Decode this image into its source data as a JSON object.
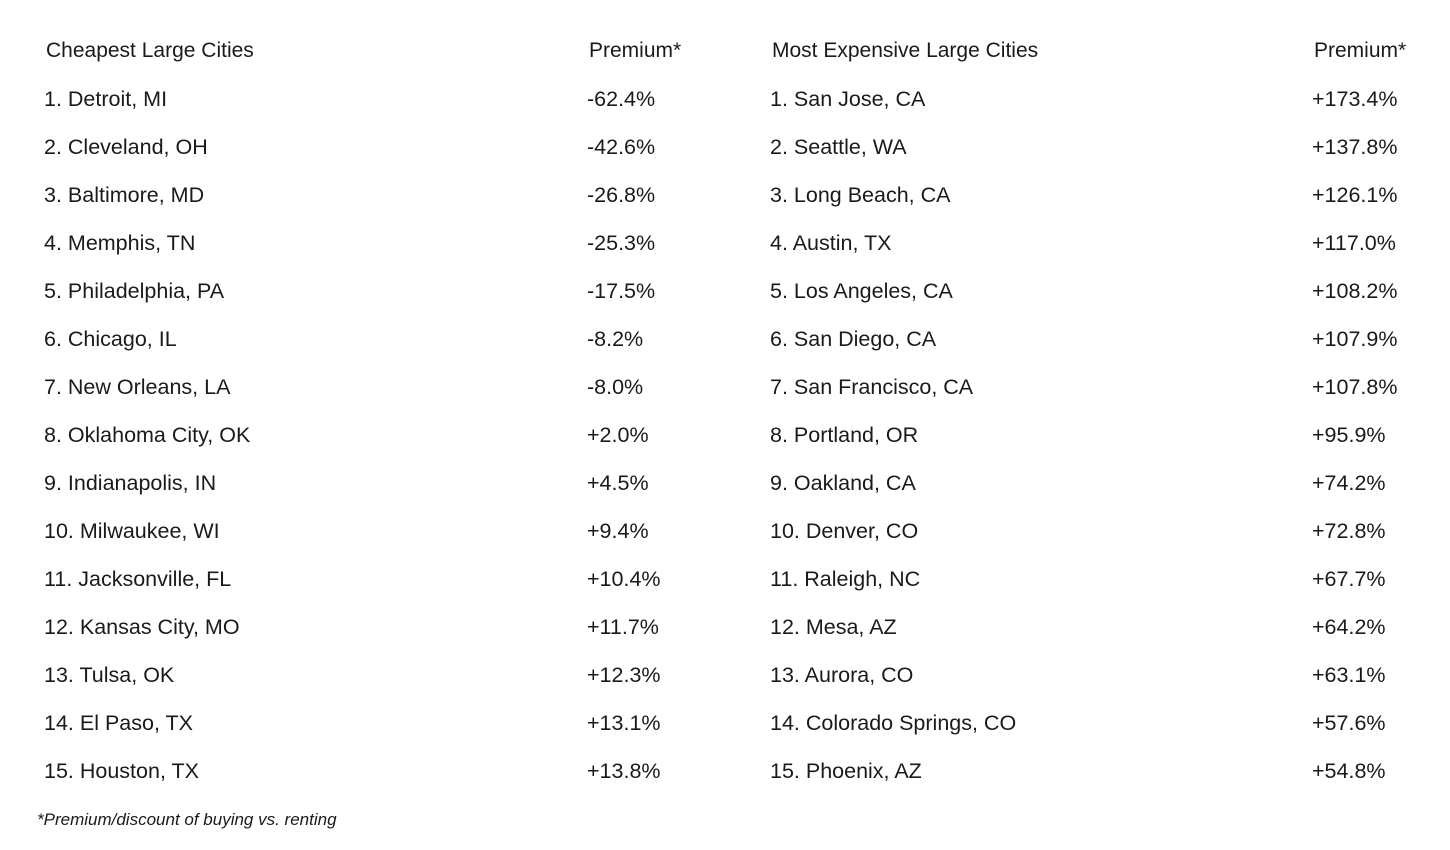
{
  "headers": {
    "left_title": "Cheapest Large Cities",
    "left_value": "Premium*",
    "right_title": "Most Expensive Large Cities",
    "right_value": "Premium*"
  },
  "rows": [
    {
      "left_city": "1. Detroit, MI",
      "left_premium": "-62.4%",
      "right_city": "1. San Jose, CA",
      "right_premium": "+173.4%"
    },
    {
      "left_city": "2. Cleveland, OH",
      "left_premium": "-42.6%",
      "right_city": "2. Seattle, WA",
      "right_premium": "+137.8%"
    },
    {
      "left_city": "3. Baltimore, MD",
      "left_premium": "-26.8%",
      "right_city": "3. Long Beach, CA",
      "right_premium": "+126.1%"
    },
    {
      "left_city": "4. Memphis, TN",
      "left_premium": "-25.3%",
      "right_city": "4. Austin, TX",
      "right_premium": "+117.0%"
    },
    {
      "left_city": "5. Philadelphia, PA",
      "left_premium": "-17.5%",
      "right_city": "5. Los Angeles, CA",
      "right_premium": "+108.2%"
    },
    {
      "left_city": "6. Chicago, IL",
      "left_premium": "-8.2%",
      "right_city": "6. San Diego, CA",
      "right_premium": "+107.9%"
    },
    {
      "left_city": "7. New Orleans, LA",
      "left_premium": "-8.0%",
      "right_city": "7. San Francisco, CA",
      "right_premium": "+107.8%"
    },
    {
      "left_city": "8. Oklahoma City, OK",
      "left_premium": "+2.0%",
      "right_city": "8. Portland, OR",
      "right_premium": "+95.9%"
    },
    {
      "left_city": "9. Indianapolis, IN",
      "left_premium": "+4.5%",
      "right_city": "9. Oakland, CA",
      "right_premium": "+74.2%"
    },
    {
      "left_city": "10. Milwaukee, WI",
      "left_premium": "+9.4%",
      "right_city": "10. Denver, CO",
      "right_premium": "+72.8%"
    },
    {
      "left_city": "11. Jacksonville, FL",
      "left_premium": "+10.4%",
      "right_city": "11. Raleigh, NC",
      "right_premium": "+67.7%"
    },
    {
      "left_city": "12. Kansas City, MO",
      "left_premium": "+11.7%",
      "right_city": "12. Mesa, AZ",
      "right_premium": "+64.2%"
    },
    {
      "left_city": "13. Tulsa, OK",
      "left_premium": "+12.3%",
      "right_city": "13. Aurora, CO",
      "right_premium": "+63.1%"
    },
    {
      "left_city": "14. El Paso, TX",
      "left_premium": "+13.1%",
      "right_city": "14. Colorado Springs, CO",
      "right_premium": "+57.6%"
    },
    {
      "left_city": "15. Houston, TX",
      "left_premium": "+13.8%",
      "right_city": "15. Phoenix, AZ",
      "right_premium": "+54.8%"
    }
  ],
  "footnote": "*Premium/discount of buying vs. renting"
}
